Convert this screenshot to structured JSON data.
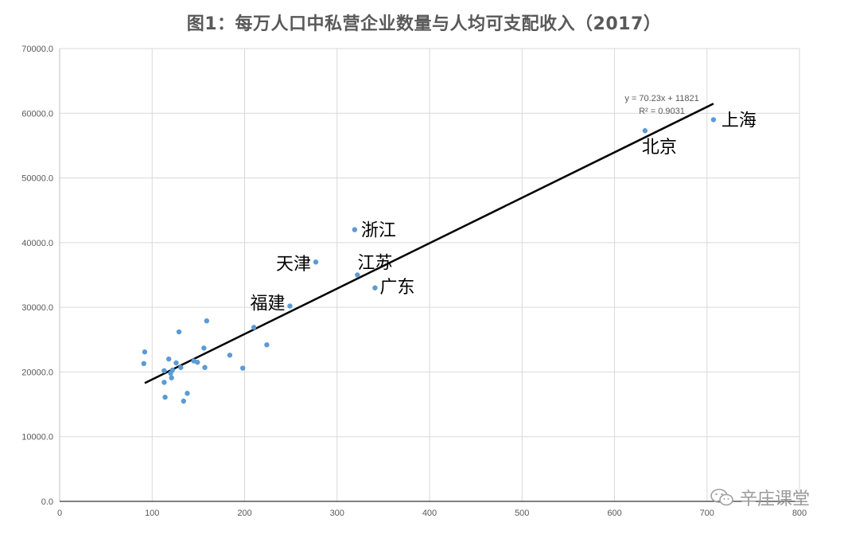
{
  "chart_data": {
    "type": "scatter",
    "title": "图1：每万人口中私营企业数量与人均可支配收入（2017）",
    "xlabel": "",
    "ylabel": "",
    "xlim": [
      0,
      800
    ],
    "ylim": [
      0,
      70000
    ],
    "x_ticks": [
      "0",
      "100",
      "200",
      "300",
      "400",
      "500",
      "600",
      "700",
      "800"
    ],
    "y_ticks": [
      "0.0",
      "10000.0",
      "20000.0",
      "30000.0",
      "40000.0",
      "50000.0",
      "60000.0",
      "70000.0"
    ],
    "grid": true,
    "series_color": "#5b9bd5",
    "trendline": {
      "slope": 70.23,
      "intercept": 11821,
      "x_range": [
        92,
        707
      ],
      "equation": "y = 70.23x + 11821",
      "r2": "R² = 0.9031",
      "color": "#000000"
    },
    "points": [
      {
        "x": 707,
        "y": 59000,
        "label": "上海"
      },
      {
        "x": 633,
        "y": 57300,
        "label": "北京"
      },
      {
        "x": 319,
        "y": 42000,
        "label": "浙江"
      },
      {
        "x": 277,
        "y": 37000,
        "label": "天津"
      },
      {
        "x": 322,
        "y": 35000,
        "label": "江苏"
      },
      {
        "x": 341,
        "y": 33000,
        "label": "广东"
      },
      {
        "x": 249,
        "y": 30200,
        "label": "福建"
      },
      {
        "x": 210,
        "y": 26900
      },
      {
        "x": 159,
        "y": 27900
      },
      {
        "x": 129,
        "y": 26200
      },
      {
        "x": 224,
        "y": 24200
      },
      {
        "x": 156,
        "y": 23700
      },
      {
        "x": 184,
        "y": 22600
      },
      {
        "x": 92,
        "y": 23100
      },
      {
        "x": 118,
        "y": 22000
      },
      {
        "x": 91,
        "y": 21300
      },
      {
        "x": 126,
        "y": 21400
      },
      {
        "x": 145,
        "y": 21700
      },
      {
        "x": 149,
        "y": 21500
      },
      {
        "x": 131,
        "y": 20700
      },
      {
        "x": 157,
        "y": 20700
      },
      {
        "x": 198,
        "y": 20600
      },
      {
        "x": 113,
        "y": 20200
      },
      {
        "x": 122,
        "y": 20300
      },
      {
        "x": 120,
        "y": 19800
      },
      {
        "x": 121,
        "y": 19100
      },
      {
        "x": 113,
        "y": 18400
      },
      {
        "x": 138,
        "y": 16700
      },
      {
        "x": 114,
        "y": 16100
      },
      {
        "x": 134,
        "y": 15500
      }
    ]
  },
  "watermark": {
    "text": "辛庄课堂",
    "icon": "wechat-icon"
  }
}
